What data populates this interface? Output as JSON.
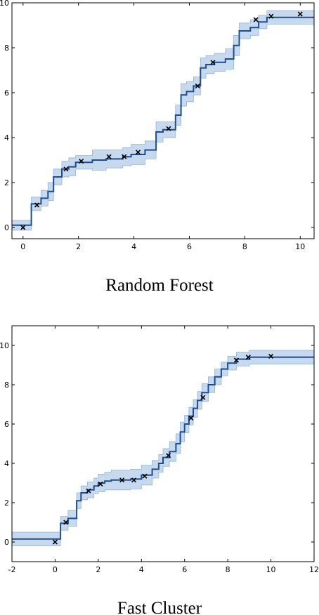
{
  "colors": {
    "line": "#1f4e8c",
    "band_fill": "#c6d9ee",
    "band_edge": "#8fb3d9",
    "marker": "#000000"
  },
  "chart_data": [
    {
      "type": "line",
      "caption": "Random Forest",
      "xlim": [
        -0.4,
        10.5
      ],
      "ylim": [
        -0.5,
        10
      ],
      "xticks": [
        "0",
        "2",
        "4",
        "6",
        "8",
        "10"
      ],
      "yticks": [
        "0",
        "2",
        "4",
        "6",
        "8",
        "10"
      ],
      "grid": false,
      "legend": "none",
      "observations": {
        "marker": "x",
        "x": [
          0.0,
          0.5,
          1.55,
          2.1,
          3.1,
          3.65,
          4.15,
          5.25,
          6.3,
          6.85,
          8.4,
          8.95,
          10.0
        ],
        "y": [
          0.0,
          1.0,
          2.6,
          2.95,
          3.15,
          3.15,
          3.35,
          4.4,
          6.3,
          7.35,
          9.25,
          9.4,
          9.5
        ]
      },
      "mean": {
        "x": [
          -0.4,
          0.3,
          0.3,
          0.65,
          0.65,
          0.9,
          0.9,
          1.1,
          1.1,
          1.4,
          1.4,
          1.65,
          1.65,
          1.9,
          1.9,
          2.5,
          2.5,
          3.0,
          3.0,
          3.6,
          3.6,
          3.9,
          3.9,
          4.4,
          4.4,
          4.8,
          4.8,
          5.05,
          5.05,
          5.5,
          5.5,
          5.7,
          5.7,
          5.9,
          5.9,
          6.15,
          6.15,
          6.4,
          6.4,
          6.6,
          6.6,
          6.9,
          6.9,
          7.3,
          7.3,
          7.6,
          7.6,
          7.8,
          7.8,
          8.2,
          8.2,
          8.5,
          8.5,
          8.8,
          8.8,
          9.2,
          9.2,
          10.5
        ],
        "y": [
          0.1,
          0.1,
          1.05,
          1.05,
          1.3,
          1.3,
          1.6,
          1.6,
          2.25,
          2.25,
          2.6,
          2.6,
          2.7,
          2.7,
          2.9,
          2.9,
          3.0,
          3.0,
          3.05,
          3.05,
          3.15,
          3.15,
          3.25,
          3.25,
          3.45,
          3.45,
          4.25,
          4.25,
          4.35,
          4.35,
          5.0,
          5.0,
          5.9,
          5.9,
          6.05,
          6.05,
          6.3,
          6.3,
          7.1,
          7.1,
          7.25,
          7.25,
          7.35,
          7.35,
          7.5,
          7.5,
          8.1,
          8.1,
          8.75,
          8.75,
          8.9,
          8.9,
          9.15,
          9.15,
          9.35,
          9.35,
          9.35,
          9.35
        ]
      },
      "band": {
        "half_width": [
          0.22,
          0.22,
          0.3,
          0.3,
          0.35,
          0.35,
          0.4,
          0.4,
          0.35,
          0.35,
          0.35,
          0.35,
          0.4,
          0.4,
          0.3,
          0.3,
          0.45,
          0.45,
          0.4,
          0.4,
          0.4,
          0.4,
          0.45,
          0.45,
          0.4,
          0.4,
          0.45,
          0.45,
          0.35,
          0.35,
          0.45,
          0.45,
          0.5,
          0.5,
          0.45,
          0.45,
          0.4,
          0.4,
          0.45,
          0.45,
          0.4,
          0.4,
          0.4,
          0.4,
          0.45,
          0.45,
          0.45,
          0.45,
          0.35,
          0.35,
          0.35,
          0.35,
          0.3,
          0.3,
          0.3,
          0.3,
          0.3,
          0.3
        ]
      }
    },
    {
      "type": "line",
      "caption": "Fast Cluster",
      "xlim": [
        -2,
        12
      ],
      "ylim": [
        -1,
        11
      ],
      "xticks": [
        "-2",
        "0",
        "2",
        "4",
        "6",
        "8",
        "10",
        "12"
      ],
      "yticks": [
        "0",
        "2",
        "4",
        "6",
        "8",
        "10"
      ],
      "grid": false,
      "legend": "none",
      "observations": {
        "marker": "x",
        "x": [
          0.0,
          0.5,
          1.55,
          2.1,
          3.1,
          3.65,
          4.15,
          5.25,
          6.3,
          6.85,
          8.4,
          8.95,
          10.0
        ],
        "y": [
          0.0,
          1.0,
          2.6,
          2.95,
          3.15,
          3.15,
          3.35,
          4.4,
          6.3,
          7.35,
          9.25,
          9.4,
          9.45
        ]
      },
      "mean": {
        "x": [
          -2,
          0.25,
          0.25,
          0.6,
          0.6,
          1.0,
          1.0,
          1.2,
          1.2,
          1.5,
          1.5,
          1.8,
          1.8,
          2.0,
          2.0,
          2.3,
          2.3,
          2.6,
          2.6,
          3.5,
          3.5,
          4.0,
          4.0,
          4.5,
          4.5,
          4.8,
          4.8,
          5.0,
          5.0,
          5.3,
          5.3,
          5.6,
          5.6,
          5.8,
          5.8,
          6.0,
          6.0,
          6.2,
          6.2,
          6.4,
          6.4,
          6.6,
          6.6,
          6.8,
          6.8,
          7.1,
          7.1,
          7.4,
          7.4,
          7.7,
          7.7,
          8.0,
          8.0,
          8.4,
          8.4,
          9.0,
          9.0,
          12
        ],
        "y": [
          0.15,
          0.15,
          0.95,
          0.95,
          1.2,
          1.2,
          2.1,
          2.1,
          2.5,
          2.5,
          2.65,
          2.65,
          2.85,
          2.85,
          3.0,
          3.0,
          3.1,
          3.1,
          3.15,
          3.15,
          3.2,
          3.2,
          3.4,
          3.4,
          3.7,
          3.7,
          4.0,
          4.0,
          4.3,
          4.3,
          4.6,
          4.6,
          5.0,
          5.0,
          5.6,
          5.6,
          6.0,
          6.0,
          6.4,
          6.4,
          6.8,
          6.8,
          7.2,
          7.2,
          7.6,
          7.6,
          8.0,
          8.0,
          8.4,
          8.4,
          8.8,
          8.8,
          9.1,
          9.1,
          9.3,
          9.3,
          9.4,
          9.4
        ]
      },
      "band": {
        "half_width": [
          0.35,
          0.35,
          0.35,
          0.35,
          0.4,
          0.4,
          0.4,
          0.4,
          0.35,
          0.35,
          0.4,
          0.4,
          0.4,
          0.4,
          0.45,
          0.45,
          0.45,
          0.45,
          0.5,
          0.5,
          0.5,
          0.5,
          0.5,
          0.5,
          0.45,
          0.45,
          0.45,
          0.45,
          0.45,
          0.45,
          0.5,
          0.5,
          0.5,
          0.5,
          0.5,
          0.5,
          0.45,
          0.45,
          0.45,
          0.45,
          0.45,
          0.45,
          0.45,
          0.45,
          0.45,
          0.45,
          0.4,
          0.4,
          0.4,
          0.4,
          0.35,
          0.35,
          0.35,
          0.35,
          0.35,
          0.35,
          0.35,
          0.35
        ]
      }
    }
  ]
}
